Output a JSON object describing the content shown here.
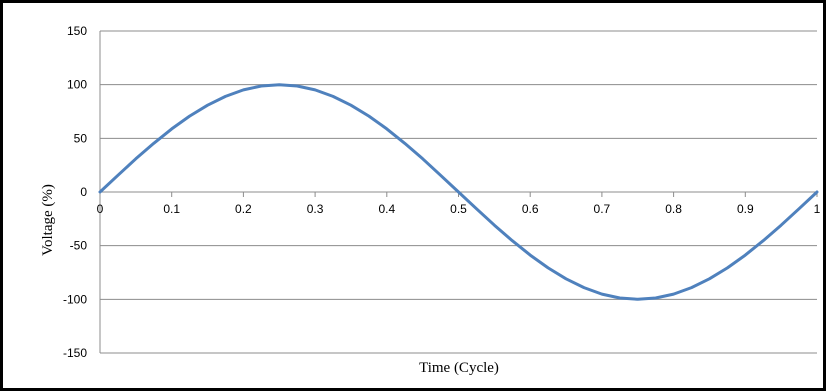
{
  "chart_data": {
    "type": "line",
    "title": "",
    "xlabel": "Time (Cycle)",
    "ylabel": "Voltage (%)",
    "xlim": [
      0,
      1
    ],
    "ylim": [
      -150,
      150
    ],
    "x_ticks": [
      "0",
      "0.1",
      "0.2",
      "0.3",
      "0.4",
      "0.5",
      "0.6",
      "0.7",
      "0.8",
      "0.9",
      "1"
    ],
    "y_ticks": [
      "150",
      "100",
      "50",
      "0",
      "-50",
      "-100",
      "-150"
    ],
    "grid": "horizontal",
    "legend": "none",
    "line_color": "#4f81bd",
    "series": [
      {
        "x": [
          0,
          0.025,
          0.05,
          0.075,
          0.1,
          0.125,
          0.15,
          0.175,
          0.2,
          0.225,
          0.25,
          0.275,
          0.3,
          0.325,
          0.35,
          0.375,
          0.4,
          0.425,
          0.45,
          0.475,
          0.5,
          0.525,
          0.55,
          0.575,
          0.6,
          0.625,
          0.65,
          0.675,
          0.7,
          0.725,
          0.75,
          0.775,
          0.8,
          0.825,
          0.85,
          0.875,
          0.9,
          0.925,
          0.95,
          0.975,
          1
        ],
        "values": [
          0,
          15.6,
          30.9,
          45.4,
          58.8,
          70.7,
          80.9,
          89.1,
          95.1,
          98.8,
          100,
          98.8,
          95.1,
          89.1,
          80.9,
          70.7,
          58.8,
          45.4,
          30.9,
          15.6,
          0,
          -15.6,
          -30.9,
          -45.4,
          -58.8,
          -70.7,
          -80.9,
          -89.1,
          -95.1,
          -98.8,
          -100,
          -98.8,
          -95.1,
          -89.1,
          -80.9,
          -70.7,
          -58.8,
          -45.4,
          -30.9,
          -15.6,
          0
        ]
      }
    ]
  }
}
